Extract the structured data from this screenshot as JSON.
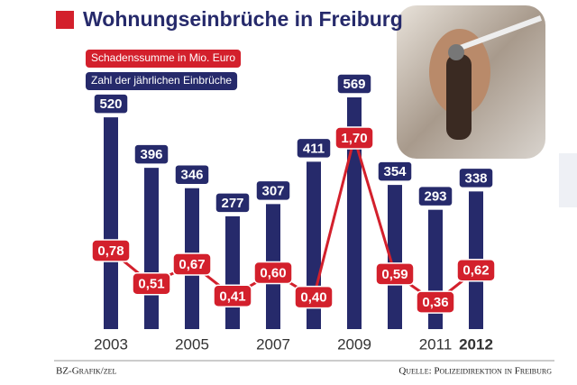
{
  "chart_data": {
    "type": "bar_line",
    "title": "Wohnungseinbrüche in Freiburg",
    "categories": [
      "2003",
      null,
      "2005",
      null,
      "2007",
      null,
      "2009",
      null,
      "2011",
      "2012"
    ],
    "series": [
      {
        "name": "Schadenssumme in Mio. Euro",
        "type": "line",
        "axis": "y2",
        "color": "#d3202c",
        "values": [
          0.78,
          0.51,
          0.67,
          0.41,
          0.6,
          0.4,
          1.7,
          0.59,
          0.36,
          0.62
        ],
        "value_labels": [
          "0,78",
          "0,51",
          "0,67",
          "0,41",
          "0,60",
          "0,40",
          "1,70",
          "0,59",
          "0,36",
          "0,62"
        ]
      },
      {
        "name": "Zahl der jährlichen Einbrüche",
        "type": "bar",
        "color": "#262a6b",
        "values": [
          520,
          396,
          346,
          277,
          307,
          411,
          569,
          354,
          293,
          338
        ]
      }
    ],
    "credit": "BZ-Grafik/zel",
    "source": "Quelle: Polizeidirektion in Freiburg"
  }
}
